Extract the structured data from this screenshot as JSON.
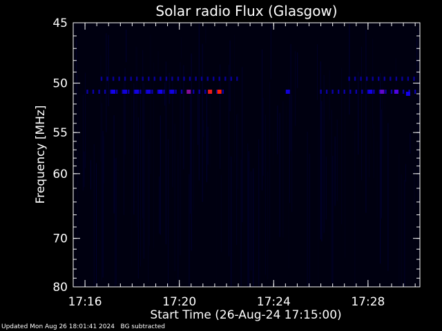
{
  "chart_data": {
    "type": "heatmap",
    "title": "Solar radio Flux (Glasgow)",
    "xlabel": "Start Time (26-Aug-24 17:15:00)",
    "ylabel": "Frequency [MHz]",
    "xlim_minutes": [
      15.5,
      30.2
    ],
    "ylim_mhz": [
      45,
      80
    ],
    "y_scale": "reciprocal",
    "x_ticks": [
      {
        "t": 16,
        "label": "17:16"
      },
      {
        "t": 20,
        "label": "17:20"
      },
      {
        "t": 24,
        "label": "17:24"
      },
      {
        "t": 28,
        "label": "17:28"
      }
    ],
    "y_ticks": [
      {
        "v": 45,
        "label": "45"
      },
      {
        "v": 50,
        "label": "50"
      },
      {
        "v": 55,
        "label": "55"
      },
      {
        "v": 60,
        "label": "60"
      },
      {
        "v": 70,
        "label": "70"
      },
      {
        "v": 80,
        "label": "80"
      }
    ],
    "background": "#000000",
    "axis_color": "#ffffff",
    "emission_bands": [
      {
        "freq_mhz": 49.6,
        "t_start": 16.7,
        "t_end": 22.6,
        "step": 0.25,
        "intensity": 0.45
      },
      {
        "freq_mhz": 49.6,
        "t_start": 27.2,
        "t_end": 30.0,
        "step": 0.25,
        "intensity": 0.45
      },
      {
        "freq_mhz": 50.8,
        "t_start": 16.1,
        "t_end": 21.9,
        "step": 0.25,
        "intensity": 0.55
      },
      {
        "freq_mhz": 50.8,
        "t_start": 26.0,
        "t_end": 30.1,
        "step": 0.25,
        "intensity": 0.55
      }
    ],
    "hot_spots": [
      {
        "t": 17.2,
        "freq_mhz": 50.8,
        "intensity": 0.9
      },
      {
        "t": 17.7,
        "freq_mhz": 50.8,
        "intensity": 0.8
      },
      {
        "t": 18.2,
        "freq_mhz": 50.8,
        "intensity": 0.85
      },
      {
        "t": 18.7,
        "freq_mhz": 50.8,
        "intensity": 0.8
      },
      {
        "t": 19.2,
        "freq_mhz": 50.8,
        "intensity": 0.9
      },
      {
        "t": 19.7,
        "freq_mhz": 50.8,
        "intensity": 0.85
      },
      {
        "t": 20.4,
        "freq_mhz": 50.8,
        "intensity": 1.4
      },
      {
        "t": 21.3,
        "freq_mhz": 50.8,
        "intensity": 1.9
      },
      {
        "t": 21.7,
        "freq_mhz": 50.8,
        "intensity": 2.0
      },
      {
        "t": 24.6,
        "freq_mhz": 50.8,
        "intensity": 0.8
      },
      {
        "t": 28.1,
        "freq_mhz": 50.8,
        "intensity": 0.85
      },
      {
        "t": 28.6,
        "freq_mhz": 50.8,
        "intensity": 1.2
      },
      {
        "t": 29.2,
        "freq_mhz": 50.8,
        "intensity": 1.1
      },
      {
        "t": 29.7,
        "freq_mhz": 51.0,
        "intensity": 0.9
      }
    ]
  },
  "footer": {
    "updated": "Updated Mon Aug 26 18:01:41 2024",
    "note": "BG subtracted"
  }
}
